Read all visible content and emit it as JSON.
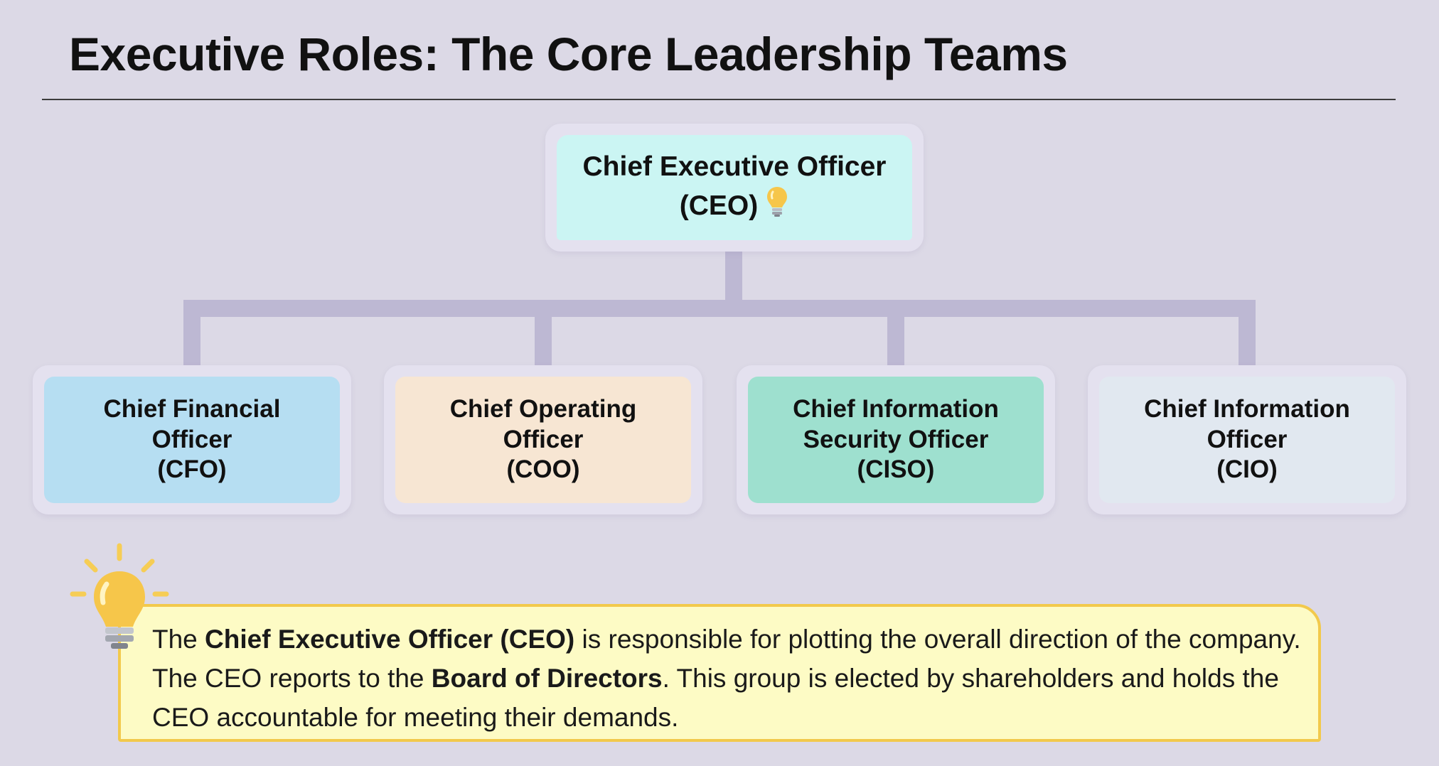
{
  "title": "Executive Roles: The Core Leadership Teams",
  "root": {
    "line1": "Chief Executive Officer",
    "line2": "(CEO)",
    "icon": "lightbulb-icon",
    "color": "#cbf5f3"
  },
  "children": [
    {
      "lines": [
        "Chief Financial",
        "Officer",
        "(CFO)"
      ],
      "color": "#b6def2"
    },
    {
      "lines": [
        "Chief Operating",
        "Officer",
        "(COO)"
      ],
      "color": "#f7e6d3"
    },
    {
      "lines": [
        "Chief Information",
        "Security Officer",
        "(CISO)"
      ],
      "color": "#9ee0cf"
    },
    {
      "lines": [
        "Chief Information",
        "Officer",
        "(CIO)"
      ],
      "color": "#e1e8f0"
    }
  ],
  "callout": {
    "icon": "lightbulb-icon",
    "t1": "The ",
    "b1": "Chief Executive Officer (CEO)",
    "t2": " is responsible for plotting the overall direction of the company. The CEO reports to the ",
    "b2": "Board of Directors",
    "t3": ". This group is elected by shareholders and holds the CEO accountable for meeting their demands.",
    "border_color": "#f2c94c",
    "background_color": "#fdfbc5"
  },
  "connector_color": "#bdb8d3"
}
